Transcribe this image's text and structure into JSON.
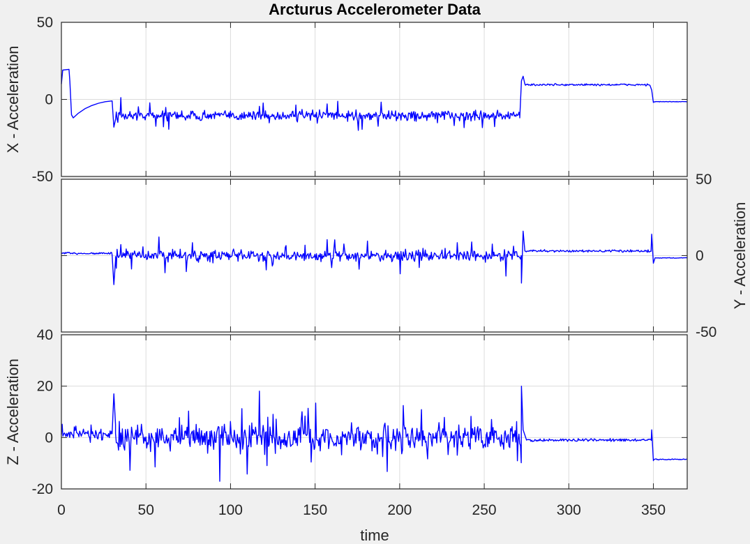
{
  "chart_data": {
    "type": "line",
    "title": "Arcturus Accelerometer Data",
    "xlabel": "time",
    "xlim": [
      0,
      370
    ],
    "xticks": [
      0,
      50,
      100,
      150,
      200,
      250,
      300,
      350
    ],
    "xtick_labels": [
      "0",
      "50",
      "100",
      "150",
      "200",
      "250",
      "300",
      "350"
    ],
    "grid": true,
    "line_color": "#0000ff",
    "subplots": [
      {
        "id": "x",
        "ylabel": "X - Acceleration",
        "ylabel_side": "left",
        "ylim": [
          -50,
          50
        ],
        "yticks": [
          -50,
          0,
          50
        ],
        "ytick_labels": [
          "-50",
          "0",
          "50"
        ],
        "segments": [
          {
            "t": [
              0,
              35
            ],
            "mode": "step",
            "note": "initial spike",
            "points": [
              [
                0,
                10
              ],
              [
                0.8,
                19
              ],
              [
                4.5,
                19.5
              ],
              [
                5,
                12
              ],
              [
                6,
                -10
              ],
              [
                7,
                -12
              ],
              [
                10,
                -9
              ],
              [
                14,
                -6
              ],
              [
                18,
                -4
              ],
              [
                22,
                -2.5
              ],
              [
                26,
                -1.5
              ],
              [
                30,
                -1
              ],
              [
                31,
                -18
              ],
              [
                32,
                -13
              ]
            ]
          },
          {
            "t": [
              32,
              271
            ],
            "mode": "noise",
            "mean": -10.5,
            "amp": 4.5
          },
          {
            "t": [
              271,
              348
            ],
            "mode": "noise",
            "mean": 9.5,
            "amp": 1.0,
            "start_points": [
              [
                271,
                -12
              ],
              [
                272,
                12
              ],
              [
                273,
                15
              ],
              [
                274,
                10
              ]
            ]
          },
          {
            "t": [
              348,
              370
            ],
            "mode": "noise",
            "mean": -1.5,
            "amp": 0.3,
            "start_points": [
              [
                348,
                9
              ],
              [
                349,
                6
              ],
              [
                350,
                -2
              ]
            ]
          }
        ]
      },
      {
        "id": "y",
        "ylabel": "Y - Acceleration",
        "ylabel_side": "right",
        "ylim": [
          -50,
          50
        ],
        "yticks": [
          -50,
          0,
          50
        ],
        "ytick_labels": [
          "-50",
          "0",
          "50"
        ],
        "segments": [
          {
            "t": [
              0,
              30
            ],
            "mode": "noise",
            "mean": 1.5,
            "amp": 1.0
          },
          {
            "t": [
              30,
              31
            ],
            "mode": "step",
            "points": [
              [
                30,
                0.5
              ],
              [
                31,
                -19
              ],
              [
                32,
                -3
              ]
            ]
          },
          {
            "t": [
              32,
              272
            ],
            "mode": "noise",
            "mean": 0,
            "amp": 5.5
          },
          {
            "t": [
              272,
              349
            ],
            "mode": "noise",
            "mean": 3,
            "amp": 1.0,
            "start_points": [
              [
                272,
                -18
              ],
              [
                273,
                16
              ],
              [
                274,
                3
              ]
            ]
          },
          {
            "t": [
              349,
              370
            ],
            "mode": "noise",
            "mean": -1.5,
            "amp": 0.4,
            "start_points": [
              [
                349,
                14
              ],
              [
                350,
                -5
              ],
              [
                351,
                -1.5
              ]
            ]
          }
        ]
      },
      {
        "id": "z",
        "ylabel": "Z - Acceleration",
        "ylabel_side": "left",
        "ylim": [
          -20,
          40
        ],
        "yticks": [
          -20,
          0,
          20,
          40
        ],
        "ytick_labels": [
          "-20",
          "0",
          "20",
          "40"
        ],
        "segments": [
          {
            "t": [
              0,
              30
            ],
            "mode": "noise",
            "mean": 1.5,
            "amp": 2.5
          },
          {
            "t": [
              30,
              32
            ],
            "mode": "step",
            "points": [
              [
                30,
                1.5
              ],
              [
                31,
                17
              ],
              [
                32,
                5
              ]
            ]
          },
          {
            "t": [
              32,
              272
            ],
            "mode": "noise",
            "mean": 0,
            "amp": 7.5
          },
          {
            "t": [
              272,
              349
            ],
            "mode": "noise",
            "mean": -1,
            "amp": 0.8,
            "start_points": [
              [
                272,
                20
              ],
              [
                273,
                3
              ],
              [
                275,
                -1
              ]
            ]
          },
          {
            "t": [
              349,
              370
            ],
            "mode": "noise",
            "mean": -8.5,
            "amp": 0.3,
            "start_points": [
              [
                349,
                3
              ],
              [
                350,
                -9
              ]
            ]
          }
        ]
      }
    ]
  }
}
